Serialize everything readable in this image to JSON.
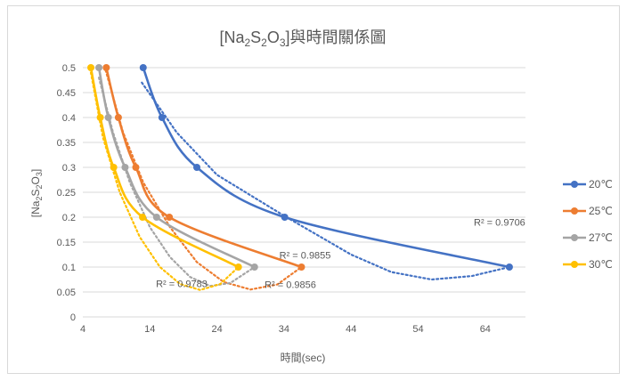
{
  "chart_data": {
    "type": "scatter",
    "title": {
      "main": "[Na",
      "sub1": "2",
      "mid1": "S",
      "sub2": "2",
      "mid2": "O",
      "sub3": "3",
      "tail": "]與時間關係圖"
    },
    "ylabel": {
      "a": "[Na",
      "s1": "2",
      "b": "S",
      "s2": "2",
      "c": "O",
      "s3": "3",
      "d": "]"
    },
    "xlabel": "時間(sec)",
    "xlim": [
      4,
      70
    ],
    "ylim": [
      0,
      0.5
    ],
    "xticks": [
      4,
      14,
      24,
      34,
      44,
      54,
      64
    ],
    "yticks": [
      0,
      0.05,
      0.1,
      0.15,
      0.2,
      0.25,
      0.3,
      0.35,
      0.4,
      0.45,
      0.5
    ],
    "grid": true,
    "legend_position": "right",
    "series": [
      {
        "name": "20℃",
        "color": "#4472c4",
        "x": [
          13,
          15.8,
          21,
          34.1,
          67.6
        ],
        "y": [
          0.5,
          0.4,
          0.3,
          0.2,
          0.1
        ],
        "r2": "R² = 0.9706",
        "trend_x": [
          12.8,
          18,
          24,
          34,
          44,
          50,
          56,
          62,
          67.6
        ],
        "trend_y": [
          0.47,
          0.37,
          0.285,
          0.203,
          0.125,
          0.09,
          0.075,
          0.082,
          0.1
        ]
      },
      {
        "name": "25℃",
        "color": "#ed7d31",
        "x": [
          7.5,
          9.3,
          11.9,
          16.9,
          36.6
        ],
        "y": [
          0.5,
          0.4,
          0.3,
          0.2,
          0.1
        ],
        "r2": "R² = 0.9855",
        "trend_x": [
          7.4,
          10,
          13,
          17,
          21,
          25,
          29,
          33,
          36.6
        ],
        "trend_y": [
          0.495,
          0.37,
          0.27,
          0.18,
          0.11,
          0.07,
          0.055,
          0.065,
          0.1
        ]
      },
      {
        "name": "27℃",
        "color": "#a5a5a5",
        "x": [
          6.4,
          7.8,
          10.3,
          15,
          29.6
        ],
        "y": [
          0.5,
          0.4,
          0.3,
          0.2,
          0.1
        ],
        "r2": "R² = 0.9856",
        "trend_x": [
          6.4,
          8.5,
          11,
          14,
          17,
          20,
          23,
          26,
          29.6
        ],
        "trend_y": [
          0.48,
          0.37,
          0.27,
          0.18,
          0.12,
          0.08,
          0.062,
          0.068,
          0.1
        ]
      },
      {
        "name": "30℃",
        "color": "#ffc000",
        "x": [
          5.2,
          6.6,
          8.6,
          12.9,
          27.2
        ],
        "y": [
          0.5,
          0.4,
          0.3,
          0.2,
          0.1
        ],
        "r2": "R² = 0.9783",
        "trend_x": [
          5.2,
          7,
          9.5,
          12.5,
          15.5,
          18.5,
          21.5,
          24.5,
          27.2
        ],
        "trend_y": [
          0.49,
          0.36,
          0.25,
          0.16,
          0.1,
          0.066,
          0.054,
          0.066,
          0.1
        ]
      }
    ],
    "r2_positions": [
      {
        "x": 62.3,
        "y": 0.183
      },
      {
        "x": 33.3,
        "y": 0.117
      },
      {
        "x": 31.1,
        "y": 0.058
      },
      {
        "x": 14.9,
        "y": 0.06
      }
    ]
  }
}
